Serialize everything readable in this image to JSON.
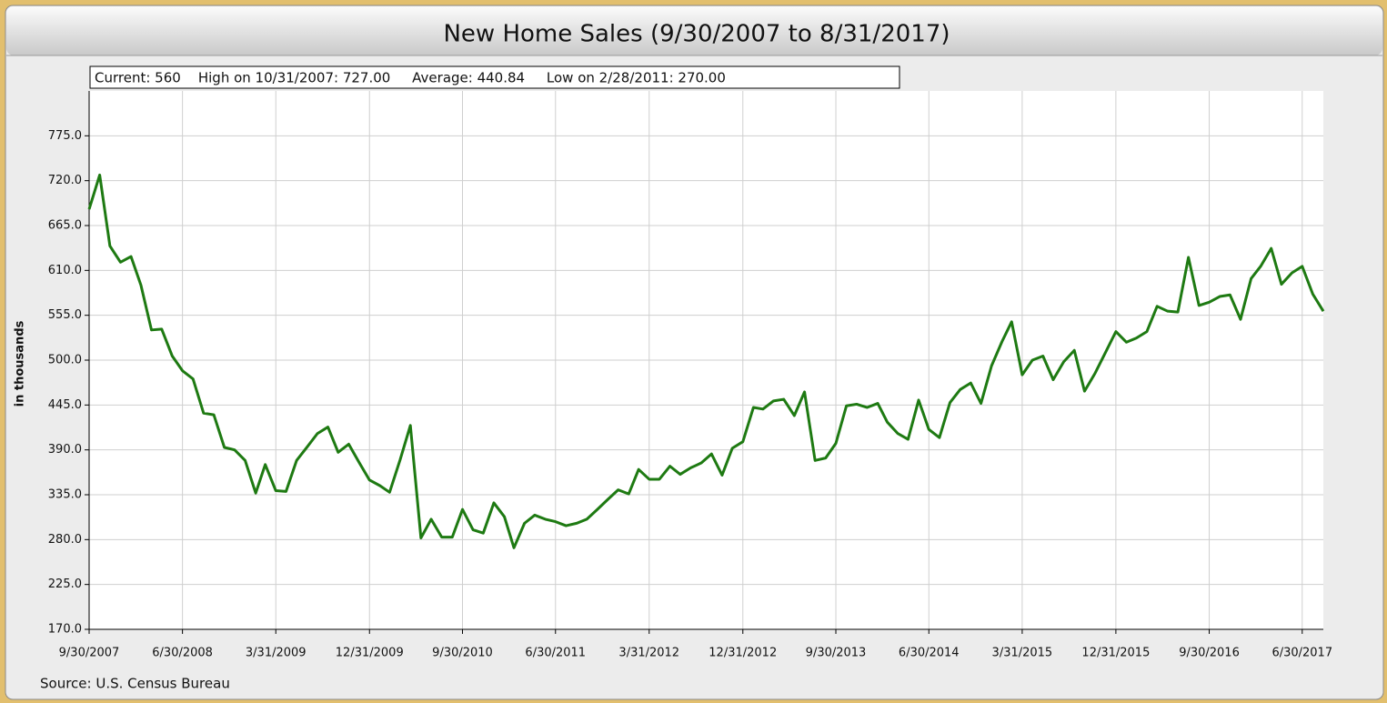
{
  "chart_data": {
    "type": "line",
    "title": "New Home Sales (9/30/2007 to 8/31/2017)",
    "stats": "Current: 560    High on 10/31/2007: 727.00     Average: 440.84     Low on 2/28/2011: 270.00",
    "y_label": "in thousands",
    "source": "Source: U.S. Census Bureau",
    "color": "#1e7a12",
    "grid": true,
    "xlim": [
      "9/30/2007",
      "8/31/2017"
    ],
    "xticks": [
      "9/30/2007",
      "6/30/2008",
      "3/31/2009",
      "12/31/2009",
      "9/30/2010",
      "6/30/2011",
      "3/31/2012",
      "12/31/2012",
      "9/30/2013",
      "6/30/2014",
      "3/31/2015",
      "12/31/2015",
      "9/30/2016",
      "6/30/2017"
    ],
    "ylim": [
      170,
      830
    ],
    "yticks": [
      {
        "value": 170,
        "label": "170.0"
      },
      {
        "value": 225,
        "label": "225.0"
      },
      {
        "value": 280,
        "label": "280.0"
      },
      {
        "value": 335,
        "label": "335.0"
      },
      {
        "value": 390,
        "label": "390.0"
      },
      {
        "value": 445,
        "label": "445.0"
      },
      {
        "value": 500,
        "label": "500.0"
      },
      {
        "value": 555,
        "label": "555.0"
      },
      {
        "value": 610,
        "label": "610.0"
      },
      {
        "value": 665,
        "label": "665.0"
      },
      {
        "value": 720,
        "label": "720.0"
      },
      {
        "value": 775,
        "label": "775.0"
      }
    ],
    "x": [
      "9/30/2007",
      "10/31/2007",
      "11/30/2007",
      "12/31/2007",
      "1/31/2008",
      "2/29/2008",
      "3/31/2008",
      "4/30/2008",
      "5/31/2008",
      "6/30/2008",
      "7/31/2008",
      "8/31/2008",
      "9/30/2008",
      "10/31/2008",
      "11/30/2008",
      "12/31/2008",
      "1/31/2009",
      "2/28/2009",
      "3/31/2009",
      "4/30/2009",
      "5/31/2009",
      "6/30/2009",
      "7/31/2009",
      "8/31/2009",
      "9/30/2009",
      "10/31/2009",
      "11/30/2009",
      "12/31/2009",
      "1/31/2010",
      "2/28/2010",
      "3/31/2010",
      "4/30/2010",
      "5/31/2010",
      "6/30/2010",
      "7/31/2010",
      "8/31/2010",
      "9/30/2010",
      "10/31/2010",
      "11/30/2010",
      "12/31/2010",
      "1/31/2011",
      "2/28/2011",
      "3/31/2011",
      "4/30/2011",
      "5/31/2011",
      "6/30/2011",
      "7/31/2011",
      "8/31/2011",
      "9/30/2011",
      "10/31/2011",
      "11/30/2011",
      "12/31/2011",
      "1/31/2012",
      "2/29/2012",
      "3/31/2012",
      "4/30/2012",
      "5/31/2012",
      "6/30/2012",
      "7/31/2012",
      "8/31/2012",
      "9/30/2012",
      "10/31/2012",
      "11/30/2012",
      "12/31/2012",
      "1/31/2013",
      "2/28/2013",
      "3/31/2013",
      "4/30/2013",
      "5/31/2013",
      "6/30/2013",
      "7/31/2013",
      "8/31/2013",
      "9/30/2013",
      "10/31/2013",
      "11/30/2013",
      "12/31/2013",
      "1/31/2014",
      "2/28/2014",
      "3/31/2014",
      "4/30/2014",
      "5/31/2014",
      "6/30/2014",
      "7/31/2014",
      "8/31/2014",
      "9/30/2014",
      "10/31/2014",
      "11/30/2014",
      "12/31/2014",
      "1/31/2015",
      "2/28/2015",
      "3/31/2015",
      "4/30/2015",
      "5/31/2015",
      "6/30/2015",
      "7/31/2015",
      "8/31/2015",
      "9/30/2015",
      "10/31/2015",
      "11/30/2015",
      "12/31/2015",
      "1/31/2016",
      "2/29/2016",
      "3/31/2016",
      "4/30/2016",
      "5/31/2016",
      "6/30/2016",
      "7/31/2016",
      "8/31/2016",
      "9/30/2016",
      "10/31/2016",
      "11/30/2016",
      "12/31/2016",
      "1/31/2017",
      "2/28/2017",
      "3/31/2017",
      "4/30/2017",
      "5/31/2017",
      "6/30/2017",
      "7/31/2017",
      "8/31/2017"
    ],
    "values": [
      685,
      727,
      640,
      620,
      627,
      592,
      537,
      538,
      505,
      487,
      477,
      435,
      433,
      393,
      390,
      377,
      337,
      372,
      340,
      339,
      377,
      393,
      410,
      418,
      387,
      397,
      375,
      353,
      346,
      338,
      378,
      420,
      282,
      305,
      283,
      283,
      317,
      292,
      288,
      325,
      308,
      270,
      300,
      310,
      305,
      302,
      297,
      300,
      305,
      317,
      329,
      341,
      336,
      366,
      354,
      354,
      370,
      360,
      368,
      374,
      385,
      359,
      392,
      400,
      442,
      440,
      450,
      452,
      432,
      461,
      377,
      380,
      398,
      444,
      446,
      442,
      447,
      424,
      410,
      403,
      451,
      415,
      405,
      448,
      464,
      472,
      447,
      493,
      523,
      547,
      482,
      500,
      505,
      476,
      498,
      512,
      462,
      484,
      509,
      535,
      522,
      527,
      535,
      566,
      560,
      559,
      626,
      567,
      571,
      578,
      580,
      550,
      600,
      615,
      637,
      593,
      607,
      615,
      581,
      560
    ]
  }
}
